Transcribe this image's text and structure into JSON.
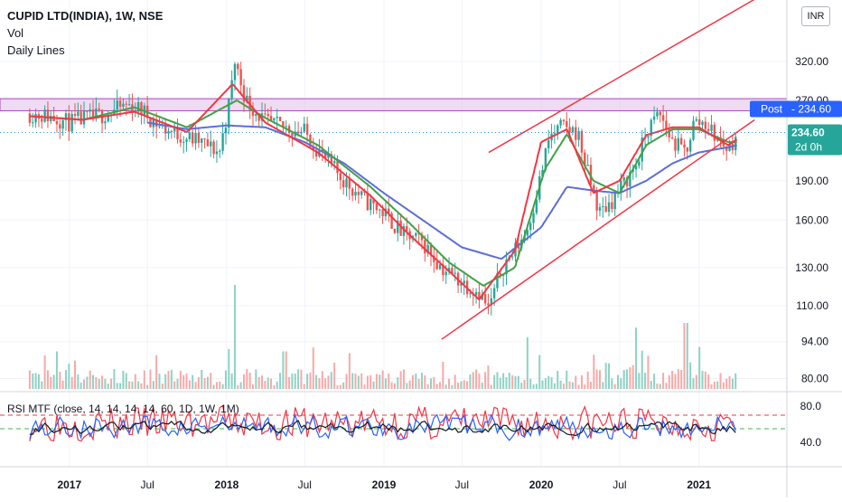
{
  "legend": {
    "symbol": "CUPID LTD(INDIA), 1W, NSE",
    "volume": "Vol",
    "study": "Daily Lines"
  },
  "currency_badge": "INR",
  "rsi_legend": "RSI MTF (close, 14, 14, 14, 14, 60, 1D, 1W, 1M)",
  "price_labels": {
    "post": "Post",
    "post_price": "234.60",
    "last_price": "234.60",
    "countdown": "2d 0h"
  },
  "colors": {
    "up": "#26a69a",
    "down": "#ef5350",
    "ma_red": "#f23645",
    "ma_green": "#43a047",
    "ma_blue": "#5b6fd6",
    "trendline": "#f23645",
    "zone_fill": "#e1bee7",
    "zone_border": "#ab47bc",
    "price_line": "#2196f3",
    "rsi_red": "#f23645",
    "rsi_blue": "#2962ff",
    "rsi_black": "#131722",
    "rsi_upper": "#f23645",
    "rsi_lower": "#4caf50",
    "badge_blue": "#2962ff"
  },
  "chart_data": {
    "type": "line",
    "title": "CUPID LTD(INDIA), 1W, NSE",
    "price_axis_ticks": [
      "320.00",
      "270.00",
      "190.00",
      "160.00",
      "130.00",
      "110.00",
      "94.00",
      "80.00"
    ],
    "price_axis_scale": "log",
    "time_axis_ticks": [
      "2017",
      "Jul",
      "2018",
      "Jul",
      "2019",
      "Jul",
      "2020",
      "Jul",
      "2021"
    ],
    "rsi_axis_ticks": [
      "80.0",
      "40.0"
    ],
    "rsi_levels": {
      "upper": 70,
      "lower": 55
    },
    "resistance_zone": [
      258,
      272
    ],
    "series": [
      {
        "name": "Price (close)",
        "x": [
          "2016-10-01",
          "2016-11-15",
          "2017-01-01",
          "2017-02-15",
          "2017-04-01",
          "2017-05-15",
          "2017-06-20",
          "2017-08-01",
          "2017-09-15",
          "2017-11-01",
          "2017-12-15",
          "2018-01-08",
          "2018-01-20",
          "2018-02-15",
          "2018-04-01",
          "2018-05-15",
          "2018-07-01",
          "2018-08-15",
          "2018-10-01",
          "2018-11-15",
          "2019-01-01",
          "2019-02-15",
          "2019-04-01",
          "2019-05-15",
          "2019-07-15",
          "2019-08-10",
          "2019-09-01",
          "2019-10-01",
          "2019-11-01",
          "2019-12-01",
          "2019-12-25",
          "2020-01-20",
          "2020-02-15",
          "2020-03-25",
          "2020-04-15",
          "2020-05-15",
          "2020-06-15",
          "2020-07-15",
          "2020-08-10",
          "2020-09-01",
          "2020-10-01",
          "2020-11-01",
          "2020-12-01",
          "2020-12-20",
          "2021-01-15",
          "2021-02-10",
          "2021-03-10",
          "2021-04-01"
        ],
        "values": [
          255,
          252,
          245,
          250,
          255,
          265,
          258,
          240,
          232,
          225,
          215,
          270,
          320,
          270,
          245,
          240,
          235,
          210,
          190,
          175,
          165,
          150,
          145,
          130,
          120,
          117,
          108,
          130,
          140,
          155,
          185,
          230,
          240,
          235,
          200,
          165,
          175,
          190,
          205,
          235,
          255,
          225,
          215,
          245,
          245,
          230,
          218,
          235
        ]
      },
      {
        "name": "MA red",
        "x": [
          "2016-10-01",
          "2017-02-01",
          "2017-06-01",
          "2017-10-01",
          "2018-01-15",
          "2018-04-01",
          "2018-08-01",
          "2018-12-01",
          "2019-03-01",
          "2019-06-01",
          "2019-08-10",
          "2019-11-01",
          "2020-01-01",
          "2020-03-01",
          "2020-05-01",
          "2020-07-01",
          "2020-09-01",
          "2020-11-01",
          "2021-01-01",
          "2021-03-10",
          "2021-04-01"
        ],
        "values": [
          252,
          248,
          257,
          235,
          290,
          245,
          215,
          178,
          150,
          128,
          113,
          140,
          225,
          238,
          180,
          190,
          232,
          240,
          240,
          222,
          228
        ]
      },
      {
        "name": "MA green",
        "x": [
          "2016-10-01",
          "2017-02-01",
          "2017-06-01",
          "2017-10-01",
          "2018-01-25",
          "2018-04-01",
          "2018-08-01",
          "2018-12-01",
          "2019-03-01",
          "2019-06-01",
          "2019-08-20",
          "2019-11-01",
          "2020-01-10",
          "2020-03-01",
          "2020-05-01",
          "2020-07-01",
          "2020-09-01",
          "2020-11-01",
          "2021-01-01",
          "2021-03-10",
          "2021-04-01"
        ],
        "values": [
          252,
          248,
          262,
          240,
          270,
          250,
          222,
          185,
          158,
          133,
          120,
          130,
          200,
          233,
          190,
          180,
          222,
          238,
          238,
          225,
          225
        ]
      },
      {
        "name": "MA blue",
        "x": [
          "2017-07-01",
          "2017-10-01",
          "2018-01-01",
          "2018-04-01",
          "2018-07-01",
          "2018-10-01",
          "2019-01-01",
          "2019-04-01",
          "2019-07-01",
          "2019-10-01",
          "2020-01-01",
          "2020-03-01",
          "2020-05-01",
          "2020-07-01",
          "2020-09-01",
          "2020-11-01",
          "2021-01-01",
          "2021-03-10",
          "2021-04-01"
        ],
        "values": [
          245,
          238,
          242,
          240,
          225,
          205,
          180,
          160,
          142,
          135,
          155,
          185,
          182,
          180,
          190,
          205,
          215,
          220,
          222
        ]
      },
      {
        "name": "Lower trendline",
        "x": [
          "2019-05-15",
          "2021-05-10"
        ],
        "values": [
          95,
          248
        ]
      },
      {
        "name": "Upper trendline",
        "x": [
          "2019-09-01",
          "2021-05-10"
        ],
        "values": [
          215,
          420
        ]
      }
    ],
    "volume_spikes": [
      {
        "x": "2018-01-20",
        "level": 1.0
      },
      {
        "x": "2019-12-01",
        "level": 0.45
      },
      {
        "x": "2020-08-10",
        "level": 0.55
      },
      {
        "x": "2020-12-01",
        "level": 0.6
      },
      {
        "x": "2016-12-01",
        "level": 0.3
      },
      {
        "x": "2018-05-15",
        "level": 0.3
      }
    ],
    "grid": true,
    "legend_position": "top-left"
  }
}
